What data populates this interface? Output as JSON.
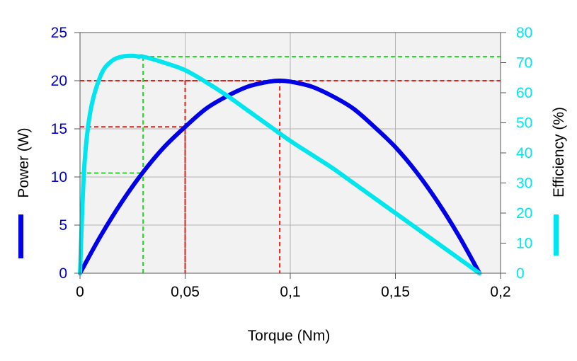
{
  "chart_data": {
    "type": "line",
    "xlabel": "Torque (Nm)",
    "ylabel_left": "Power (W)",
    "ylabel_right": "Efficiency (%)",
    "x_ticks": [
      "0",
      "0,05",
      "0,1",
      "0,15",
      "0,2"
    ],
    "y_left_ticks": [
      "0",
      "5",
      "10",
      "15",
      "20",
      "25"
    ],
    "y_right_ticks": [
      "0",
      "10",
      "20",
      "30",
      "40",
      "50",
      "60",
      "70",
      "80"
    ],
    "xlim": [
      0,
      0.2
    ],
    "ylim_left": [
      0,
      25
    ],
    "ylim_right": [
      0,
      80
    ],
    "grid": true,
    "series": [
      {
        "axis": "left",
        "color": "#0000e6",
        "x": [
          0,
          0.01,
          0.02,
          0.03,
          0.04,
          0.05,
          0.06,
          0.07,
          0.08,
          0.09,
          0.095,
          0.1,
          0.11,
          0.12,
          0.13,
          0.14,
          0.15,
          0.16,
          0.17,
          0.18,
          0.19
        ],
        "values": [
          0,
          3.94,
          7.44,
          10.5,
          13.1,
          15.2,
          17.1,
          18.4,
          19.4,
          19.9,
          20.0,
          19.9,
          19.4,
          18.4,
          17.1,
          15.2,
          13.1,
          10.5,
          7.44,
          3.94,
          0
        ]
      },
      {
        "axis": "right",
        "color": "#00e5ee",
        "x": [
          0,
          0.002,
          0.005,
          0.01,
          0.015,
          0.02,
          0.025,
          0.028,
          0.03,
          0.04,
          0.05,
          0.06,
          0.07,
          0.08,
          0.09,
          0.1,
          0.11,
          0.12,
          0.13,
          0.14,
          0.15,
          0.16,
          0.17,
          0.18,
          0.19
        ],
        "values": [
          0,
          35,
          54,
          66,
          70.5,
          72,
          72.3,
          72,
          72,
          70,
          67.5,
          63.5,
          59,
          54,
          49,
          44,
          39.5,
          35,
          30,
          25,
          20,
          15,
          10,
          5,
          0
        ]
      }
    ],
    "reference_lines": [
      {
        "color": "#e0201a",
        "x": 0.05,
        "y_left": 15.2
      },
      {
        "color": "#e0201a",
        "x": 0.095,
        "y_left": 20
      }
    ],
    "reference_lines_right": [
      {
        "color": "#22dd22",
        "x": 0.03,
        "y_right": 72
      },
      {
        "color": "#22dd22",
        "x": 0.03,
        "y_left": 10.4
      }
    ],
    "colors": {
      "plot_bg": "#f2f2f2",
      "grid": "#b3b3b3",
      "left_axis_text": "#0000cc",
      "right_axis_text": "#00e5ee"
    }
  }
}
